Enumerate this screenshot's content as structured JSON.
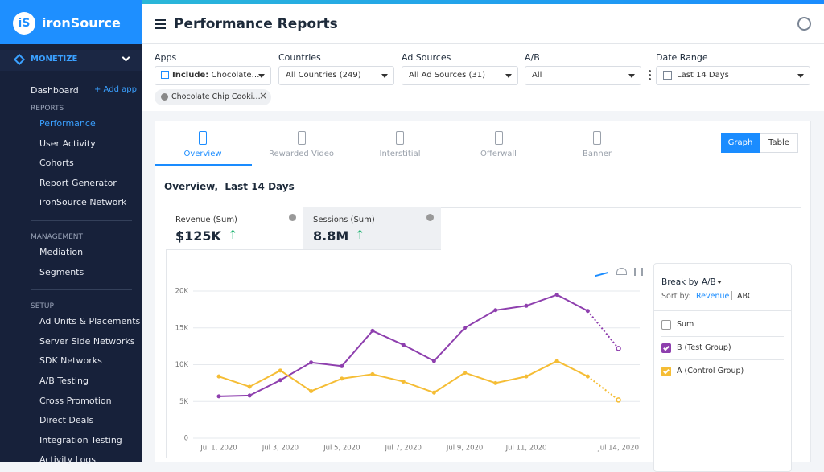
{
  "sidebar": {
    "logo_mark": "iS",
    "brand": "ironSource",
    "section": "MONETIZE",
    "dashboard": "Dashboard",
    "add_app": "+ Add app",
    "active": "Performance",
    "groups": [
      {
        "heading": "REPORTS",
        "items": [
          "Performance",
          "User Activity",
          "Cohorts",
          "Report Generator",
          "ironSource Network"
        ]
      },
      {
        "heading": "MANAGEMENT",
        "items": [
          "Mediation",
          "Segments"
        ]
      },
      {
        "heading": "SETUP",
        "items": [
          "Ad Units & Placements",
          "Server Side Networks",
          "SDK Networks",
          "A/B Testing",
          "Cross Promotion",
          "Direct Deals",
          "Integration Testing",
          "Activity Logs"
        ]
      }
    ]
  },
  "header": {
    "title": "Performance Reports"
  },
  "filters": [
    {
      "label": "Apps",
      "prefix": "Include:",
      "value": "Chocolate…"
    },
    {
      "label": "Countries",
      "value": "All Countries (249)"
    },
    {
      "label": "Ad Sources",
      "value": "All Ad Sources (31)"
    },
    {
      "label": "A/B",
      "value": "All"
    },
    {
      "label": "Date Range",
      "value": "Last 14 Days"
    }
  ],
  "chip": "Chocolate Chip Cooki…",
  "tabs": [
    "Overview",
    "Rewarded Video",
    "Interstitial",
    "Offerwall",
    "Banner"
  ],
  "active_tab": "Overview",
  "view_toggle": [
    "Graph",
    "Table"
  ],
  "active_view": "Graph",
  "section_title": "Overview,  Last 14 Days",
  "metrics": [
    {
      "label": "Revenue (Sum)",
      "value": "$125K"
    },
    {
      "label": "Sessions (Sum)",
      "value": "8.8M"
    }
  ],
  "breakdown": {
    "title": "Break by A/B",
    "sort_label": "Sort by:",
    "sort_options": [
      "Revenue",
      "ABC"
    ],
    "sum_label": "Sum",
    "sum_checked": false
  },
  "chart_data": {
    "type": "line",
    "categories": [
      "Jul 1, 2020",
      null,
      "Jul 3, 2020",
      null,
      "Jul 5, 2020",
      null,
      "Jul 7, 2020",
      null,
      "Jul 9, 2020",
      null,
      "Jul 11, 2020",
      null,
      null,
      "Jul 14, 2020"
    ],
    "series": [
      {
        "name": "B (Test Group)",
        "color": "#8e3fae",
        "values": [
          5700,
          5800,
          7900,
          10300,
          9800,
          14600,
          12700,
          10500,
          15000,
          17400,
          18000,
          19500,
          17300,
          12200
        ]
      },
      {
        "name": "A (Control Group)",
        "color": "#f5bd35",
        "values": [
          8400,
          7000,
          9200,
          6400,
          8100,
          8700,
          7700,
          6200,
          8900,
          7500,
          8400,
          10500,
          8400,
          5200
        ]
      }
    ],
    "ylim": [
      0,
      20000
    ],
    "yticks": [
      0,
      {
        "value": 5000,
        "label": "5K"
      },
      {
        "value": 10000,
        "label": "10K"
      },
      {
        "value": 15000,
        "label": "15K"
      },
      {
        "value": 20000,
        "label": "20K"
      }
    ],
    "grid": true,
    "dotted_last_segment": true
  }
}
